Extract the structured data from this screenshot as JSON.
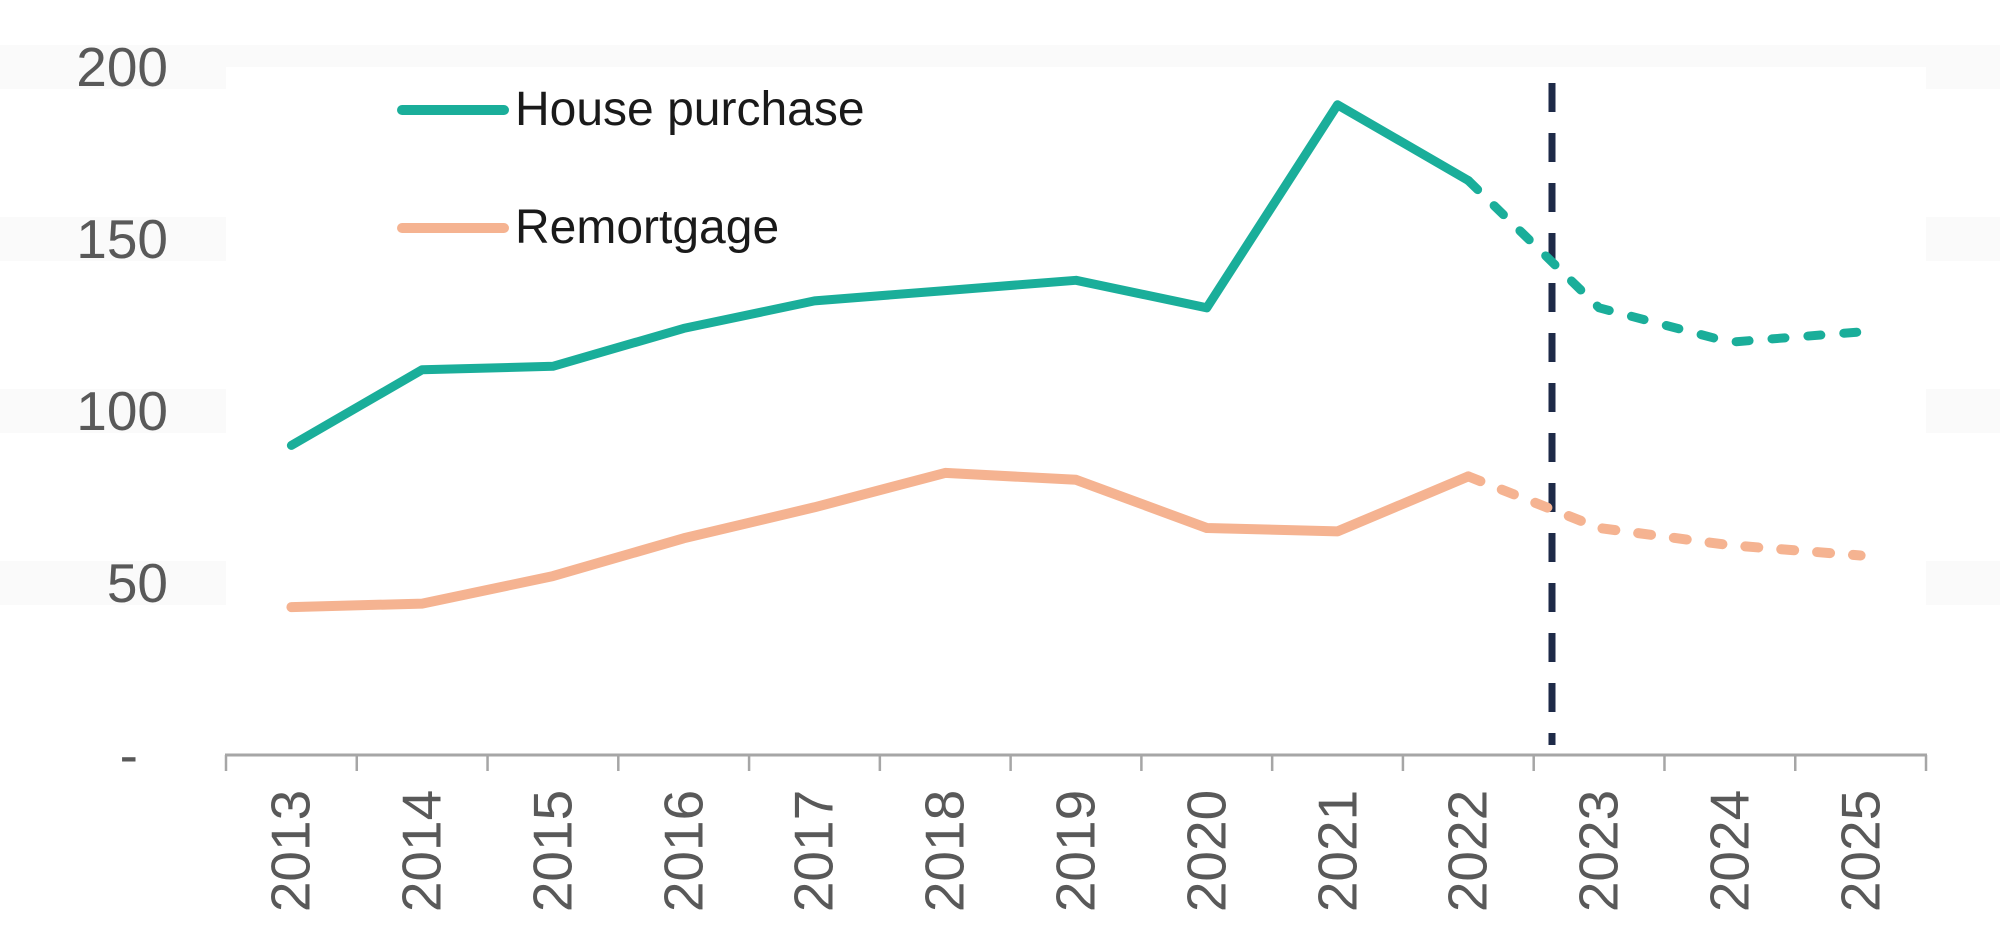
{
  "page": {
    "background": "#ffffff",
    "stripe_color": "#fafafa"
  },
  "chart_data": {
    "type": "line",
    "title": "",
    "categories": [
      "2013",
      "2014",
      "2015",
      "2016",
      "2017",
      "2018",
      "2019",
      "2020",
      "2021",
      "2022",
      "2023",
      "2024",
      "2025"
    ],
    "series": [
      {
        "name": "House purchase",
        "color": "#1AAE9A",
        "values": [
          90,
          112,
          113,
          124,
          132,
          135,
          138,
          130,
          189,
          167,
          130,
          120,
          123
        ],
        "line_style": "solid then dashed forecast"
      },
      {
        "name": "Remortgage",
        "color": "#F5B391",
        "values": [
          43,
          44,
          52,
          63,
          72,
          82,
          80,
          66,
          65,
          81,
          66,
          61,
          58
        ],
        "line_style": "solid then dashed forecast"
      }
    ],
    "forecast_start_index": 9,
    "forecast_divider": {
      "style": "dashed-vertical",
      "color": "#1E2A48",
      "between": [
        "2022",
        "2023"
      ]
    },
    "y_axis": {
      "range": [
        0,
        200
      ],
      "ticks": [
        0,
        50,
        100,
        150,
        200
      ],
      "tick_labels": [
        "-",
        "50",
        "100",
        "150",
        "200"
      ],
      "label_color": "#595959"
    },
    "x_axis": {
      "labels": [
        "2013",
        "2014",
        "2015",
        "2016",
        "2017",
        "2018",
        "2019",
        "2020",
        "2021",
        "2022",
        "2023",
        "2024",
        "2025"
      ],
      "label_color": "#595959",
      "label_rotation": -90,
      "axis_color": "#A6A6A6"
    },
    "grid": "off",
    "legend_position": "top-left-inside"
  }
}
